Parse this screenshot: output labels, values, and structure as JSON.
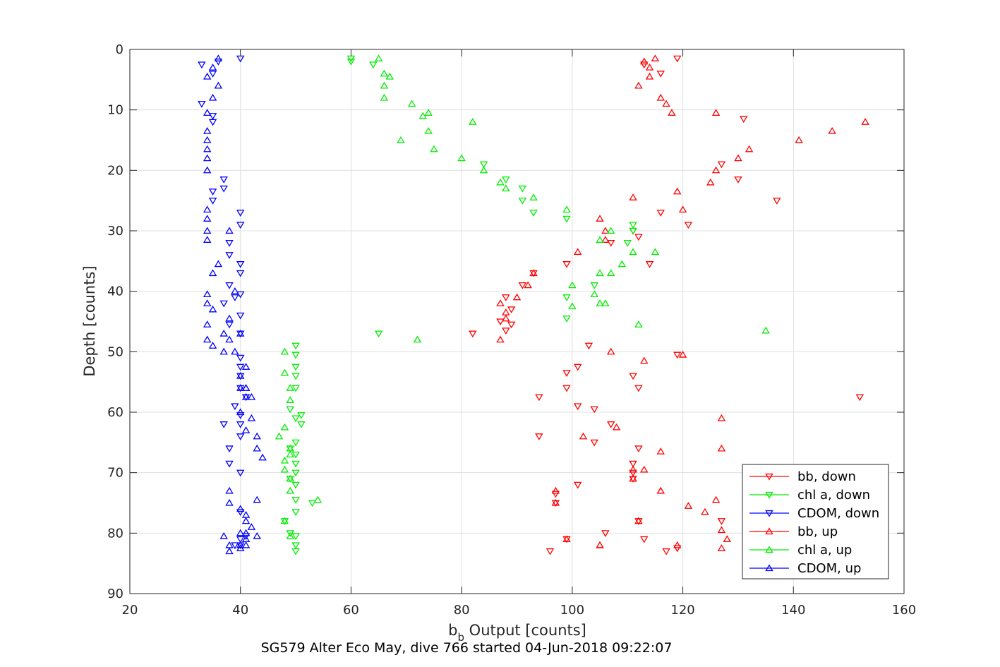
{
  "chart_data": {
    "type": "scatter",
    "caption": "SG579 Alter Eco May, dive 766 started 04-Jun-2018 09:22:07",
    "xlabel_main": "b",
    "xlabel_sub": "b",
    "xlabel_rest": "Output [counts]",
    "ylabel": "Depth [counts]",
    "xlim": [
      20,
      160
    ],
    "ylim": [
      0,
      90
    ],
    "y_reversed": true,
    "grid": true,
    "legend_position": "bottom-right",
    "x_ticks": [
      "20",
      "40",
      "60",
      "80",
      "100",
      "120",
      "140",
      "160"
    ],
    "y_ticks": [
      "0",
      "10",
      "20",
      "30",
      "40",
      "50",
      "60",
      "70",
      "80",
      "90"
    ],
    "series": [
      {
        "name": "bb, down",
        "color": "#ff0000",
        "marker": "triangle-down",
        "x": [
          119,
          113,
          116,
          131,
          127,
          130,
          137,
          116,
          121,
          112,
          111,
          107,
          114,
          99,
          93,
          91,
          88,
          89,
          89,
          88,
          87,
          82,
          103,
          119,
          101,
          99,
          111,
          112,
          99,
          152,
          94,
          101,
          104,
          107,
          104,
          94,
          112,
          111,
          111,
          111,
          97,
          97,
          101,
          112,
          127,
          106,
          99,
          96,
          113,
          119,
          117
        ],
        "y": [
          1.5,
          2.5,
          4,
          11.5,
          19,
          21.5,
          25,
          27,
          29,
          31,
          30,
          32,
          35.5,
          35.5,
          37,
          39,
          41,
          43,
          45.5,
          46.5,
          45,
          47,
          49,
          50.5,
          52.5,
          53.5,
          54,
          56,
          56,
          57.5,
          57.5,
          59,
          59.5,
          62,
          65,
          64,
          66,
          68.5,
          70,
          71,
          73.5,
          75,
          72,
          78,
          78,
          80,
          81,
          83,
          81,
          82.5,
          83
        ]
      },
      {
        "name": "chl a, down",
        "color": "#00ee00",
        "marker": "triangle-down",
        "x": [
          60,
          60,
          64,
          84,
          88,
          91,
          91,
          93,
          99,
          111,
          111,
          110,
          104,
          99,
          99,
          50,
          50,
          50,
          50,
          50,
          49,
          51,
          50,
          51,
          50,
          50,
          49,
          50,
          50,
          49,
          50,
          50,
          50,
          49,
          50,
          50,
          50,
          53,
          48,
          65
        ],
        "y": [
          1.5,
          2,
          2.5,
          19,
          21.5,
          23,
          25,
          27,
          28,
          29,
          30,
          32,
          39,
          41,
          44.5,
          49,
          50.5,
          52.5,
          54,
          56,
          59.5,
          60.5,
          61,
          62,
          65,
          67,
          66,
          68.5,
          70,
          71,
          72,
          74.5,
          76.5,
          80,
          80.5,
          82,
          83,
          75,
          78,
          47
        ]
      },
      {
        "name": "CDOM, down",
        "color": "#0000ff",
        "marker": "triangle-down",
        "x": [
          40,
          36,
          33,
          35,
          33,
          35,
          35,
          37,
          37,
          35,
          35,
          40,
          40,
          38,
          38,
          40,
          40,
          40,
          39,
          37,
          38,
          40,
          38,
          40,
          40,
          40,
          40,
          40,
          39,
          41,
          40,
          40,
          37,
          40,
          38,
          38,
          40,
          41,
          40,
          40,
          39,
          40
        ],
        "y": [
          1.5,
          2,
          2.5,
          4,
          9,
          11,
          12,
          21.5,
          23,
          23.5,
          25,
          27,
          29,
          32,
          34,
          35.5,
          37,
          40.5,
          41,
          42,
          39,
          44,
          45.5,
          47,
          51,
          52.5,
          54,
          56,
          59,
          57.5,
          60.5,
          62,
          62,
          64,
          66,
          68.5,
          70,
          80.5,
          81,
          82,
          82,
          76.5
        ]
      },
      {
        "name": "bb, up",
        "color": "#ff0000",
        "marker": "triangle-up",
        "x": [
          113,
          115,
          114,
          114,
          116,
          112,
          117,
          118,
          126,
          153,
          147,
          141,
          132,
          130,
          126,
          125,
          119,
          111,
          120,
          105,
          106,
          106,
          101,
          93,
          90,
          92,
          87,
          88,
          88,
          87,
          107,
          113,
          120,
          127,
          127,
          127,
          105,
          108,
          116,
          116,
          126,
          124,
          121,
          102,
          111,
          113,
          111,
          116,
          128,
          127,
          105,
          99,
          97,
          97,
          112,
          119
        ],
        "y": [
          2,
          1.5,
          3,
          4.5,
          8,
          6,
          9,
          10.5,
          10.5,
          12,
          13.5,
          15,
          16.5,
          18,
          20,
          22,
          23.5,
          24.5,
          26.5,
          28,
          30,
          31.5,
          33.5,
          37,
          41,
          39,
          42,
          44.5,
          43.5,
          48,
          50,
          51.5,
          50.5,
          61,
          66,
          79.5,
          82,
          62.5,
          66.5,
          73,
          74.5,
          76.5,
          75.5,
          64,
          69.5,
          69.5,
          71,
          73,
          81,
          82.5,
          82,
          81,
          73,
          75,
          78,
          82
        ]
      },
      {
        "name": "chl a, up",
        "color": "#00ee00",
        "marker": "triangle-up",
        "x": [
          65,
          66,
          67,
          66,
          66,
          71,
          74,
          73,
          74,
          82,
          75,
          69,
          80,
          84,
          87,
          88,
          93,
          99,
          107,
          105,
          111,
          115,
          109,
          107,
          105,
          104,
          105,
          100,
          106,
          100,
          112,
          135,
          72,
          48,
          48,
          49,
          49,
          48,
          48,
          48,
          47,
          49,
          54,
          49,
          49,
          49,
          48,
          49
        ],
        "y": [
          1.5,
          4,
          4.5,
          6,
          8,
          9,
          10.5,
          11,
          13.5,
          12,
          16.5,
          15,
          18,
          20,
          22,
          23,
          24.5,
          26.5,
          30,
          31.5,
          33.5,
          33.5,
          35.5,
          37,
          37,
          40.5,
          42,
          39,
          42,
          42.5,
          45.5,
          46.5,
          48,
          50,
          53.5,
          56,
          58,
          62.5,
          69.5,
          68,
          64,
          71,
          74.5,
          73,
          66,
          67,
          78,
          80.5
        ]
      },
      {
        "name": "CDOM, up",
        "color": "#0000ff",
        "marker": "triangle-up",
        "x": [
          36,
          35,
          34,
          36,
          35,
          34,
          34,
          34,
          34,
          34,
          34,
          34,
          34,
          34,
          34,
          36,
          35,
          34,
          34,
          35,
          34,
          34,
          35,
          37,
          38,
          38,
          37,
          39,
          39,
          38,
          40,
          40,
          41,
          42,
          40,
          41,
          43,
          42,
          43,
          44,
          43,
          41,
          40,
          41,
          41,
          42,
          43,
          41,
          38,
          38,
          40,
          40,
          40,
          41,
          37,
          38,
          38,
          41,
          40,
          41,
          41
        ],
        "y": [
          1.5,
          3,
          4.5,
          6,
          8,
          10.5,
          13.5,
          15,
          16.5,
          18,
          20,
          26.5,
          28,
          30,
          31.5,
          35.5,
          37,
          40.5,
          42,
          43,
          45.5,
          48,
          49,
          47,
          48,
          44.5,
          50,
          50,
          40,
          30,
          47,
          54,
          56,
          57.5,
          60,
          63,
          66,
          61,
          64,
          67.5,
          74.5,
          57.5,
          56,
          52.5,
          56,
          79,
          80.5,
          82,
          83,
          82,
          82.5,
          80,
          76,
          77,
          80.5,
          75,
          73,
          80,
          82,
          81,
          78
        ]
      }
    ]
  }
}
